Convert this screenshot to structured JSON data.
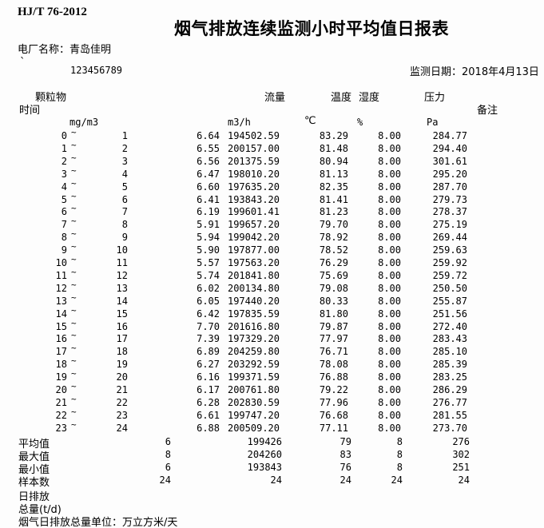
{
  "doc": {
    "standard_code": "HJ/T 76-2012",
    "title": "烟气排放连续监测小时平均值日报表",
    "plant_label": "电厂名称：青岛佳明",
    "mark": "`",
    "serial": "123456789",
    "date_label": "监测日期：2018年4月13日",
    "daily_emission_label_1": "日排放",
    "daily_emission_label_2": "总量(t/d)",
    "footer_note": "烟气日排放总量单位：万立方米/天"
  },
  "table": {
    "tilde": "~",
    "headers": {
      "pm": "颗粒物",
      "time": "时间",
      "flow": "流量",
      "temp": "温度",
      "humidity": "湿度",
      "pressure": "压力",
      "remark": "备注"
    },
    "units": {
      "pm": "mg/m3",
      "flow": "m3/h",
      "temp": "℃",
      "humidity": "%",
      "pressure": "Pa"
    },
    "rows": [
      {
        "h1": "0",
        "h2": "1",
        "pm": "6.64",
        "flow": "194502.59",
        "temp": "83.29",
        "hum": "8.00",
        "pres": "284.77"
      },
      {
        "h1": "1",
        "h2": "2",
        "pm": "6.55",
        "flow": "200157.00",
        "temp": "81.48",
        "hum": "8.00",
        "pres": "294.40"
      },
      {
        "h1": "2",
        "h2": "3",
        "pm": "6.56",
        "flow": "201375.59",
        "temp": "80.94",
        "hum": "8.00",
        "pres": "301.61"
      },
      {
        "h1": "3",
        "h2": "4",
        "pm": "6.47",
        "flow": "198010.20",
        "temp": "81.13",
        "hum": "8.00",
        "pres": "295.20"
      },
      {
        "h1": "4",
        "h2": "5",
        "pm": "6.60",
        "flow": "197635.20",
        "temp": "82.35",
        "hum": "8.00",
        "pres": "287.70"
      },
      {
        "h1": "5",
        "h2": "6",
        "pm": "6.41",
        "flow": "193843.20",
        "temp": "81.41",
        "hum": "8.00",
        "pres": "279.73"
      },
      {
        "h1": "6",
        "h2": "7",
        "pm": "6.19",
        "flow": "199601.41",
        "temp": "81.23",
        "hum": "8.00",
        "pres": "278.37"
      },
      {
        "h1": "7",
        "h2": "8",
        "pm": "5.91",
        "flow": "199657.20",
        "temp": "79.70",
        "hum": "8.00",
        "pres": "275.19"
      },
      {
        "h1": "8",
        "h2": "9",
        "pm": "5.94",
        "flow": "199042.20",
        "temp": "78.92",
        "hum": "8.00",
        "pres": "269.44"
      },
      {
        "h1": "9",
        "h2": "10",
        "pm": "5.90",
        "flow": "197877.00",
        "temp": "78.52",
        "hum": "8.00",
        "pres": "259.63"
      },
      {
        "h1": "10",
        "h2": "11",
        "pm": "5.57",
        "flow": "197563.20",
        "temp": "76.29",
        "hum": "8.00",
        "pres": "259.92"
      },
      {
        "h1": "11",
        "h2": "12",
        "pm": "5.74",
        "flow": "201841.80",
        "temp": "75.69",
        "hum": "8.00",
        "pres": "259.72"
      },
      {
        "h1": "12",
        "h2": "13",
        "pm": "6.02",
        "flow": "200134.80",
        "temp": "79.08",
        "hum": "8.00",
        "pres": "250.50"
      },
      {
        "h1": "13",
        "h2": "14",
        "pm": "6.05",
        "flow": "197440.20",
        "temp": "80.33",
        "hum": "8.00",
        "pres": "255.87"
      },
      {
        "h1": "14",
        "h2": "15",
        "pm": "6.42",
        "flow": "197835.59",
        "temp": "81.80",
        "hum": "8.00",
        "pres": "251.56"
      },
      {
        "h1": "15",
        "h2": "16",
        "pm": "7.70",
        "flow": "201616.80",
        "temp": "79.87",
        "hum": "8.00",
        "pres": "272.40"
      },
      {
        "h1": "16",
        "h2": "17",
        "pm": "7.39",
        "flow": "197329.20",
        "temp": "77.97",
        "hum": "8.00",
        "pres": "283.43"
      },
      {
        "h1": "17",
        "h2": "18",
        "pm": "6.89",
        "flow": "204259.80",
        "temp": "76.71",
        "hum": "8.00",
        "pres": "285.10"
      },
      {
        "h1": "18",
        "h2": "19",
        "pm": "6.27",
        "flow": "203292.59",
        "temp": "78.08",
        "hum": "8.00",
        "pres": "285.39"
      },
      {
        "h1": "19",
        "h2": "20",
        "pm": "6.16",
        "flow": "199371.59",
        "temp": "76.88",
        "hum": "8.00",
        "pres": "283.25"
      },
      {
        "h1": "20",
        "h2": "21",
        "pm": "6.17",
        "flow": "200761.80",
        "temp": "79.22",
        "hum": "8.00",
        "pres": "286.29"
      },
      {
        "h1": "21",
        "h2": "22",
        "pm": "6.28",
        "flow": "202830.59",
        "temp": "77.96",
        "hum": "8.00",
        "pres": "276.77"
      },
      {
        "h1": "22",
        "h2": "23",
        "pm": "6.61",
        "flow": "199747.20",
        "temp": "76.68",
        "hum": "8.00",
        "pres": "281.55"
      },
      {
        "h1": "23",
        "h2": "24",
        "pm": "6.88",
        "flow": "200509.20",
        "temp": "77.11",
        "hum": "8.00",
        "pres": "273.70"
      }
    ],
    "summary": [
      {
        "label": "平均值",
        "pm": "6",
        "flow": "199426",
        "temp": "79",
        "hum": "8",
        "pres": "276"
      },
      {
        "label": "最大值",
        "pm": "8",
        "flow": "204260",
        "temp": "83",
        "hum": "8",
        "pres": "302"
      },
      {
        "label": "最小值",
        "pm": "6",
        "flow": "193843",
        "temp": "76",
        "hum": "8",
        "pres": "251"
      },
      {
        "label": "样本数",
        "pm": "24",
        "flow": "24",
        "temp": "24",
        "hum": "24",
        "pres": "24"
      }
    ]
  }
}
